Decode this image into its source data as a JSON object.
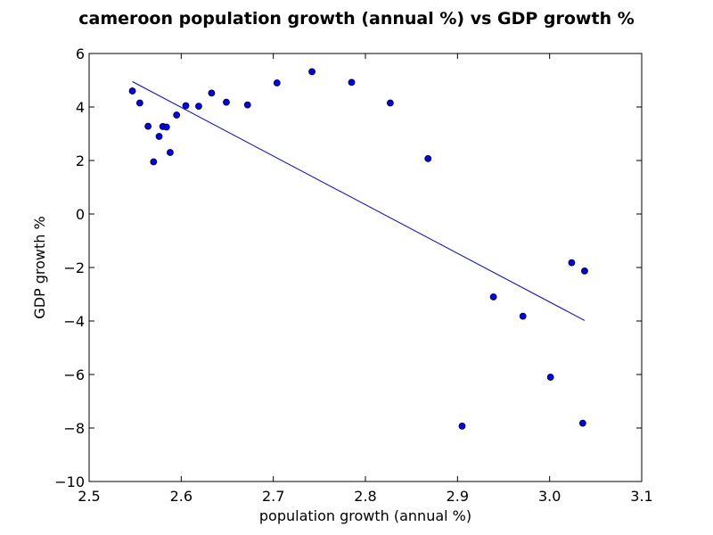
{
  "chart_data": {
    "type": "scatter",
    "title": "cameroon population growth (annual %) vs GDP growth %",
    "xlabel": "population growth (annual %)",
    "ylabel": "GDP growth %",
    "xlim": [
      2.5,
      3.1
    ],
    "ylim": [
      -10,
      6
    ],
    "xticks": [
      2.5,
      2.6,
      2.7,
      2.8,
      2.9,
      3.0,
      3.1
    ],
    "xtick_labels": [
      "2.5",
      "2.6",
      "2.7",
      "2.8",
      "2.9",
      "3.0",
      "3.1"
    ],
    "yticks": [
      -10,
      -8,
      -6,
      -4,
      -2,
      0,
      2,
      4,
      6
    ],
    "ytick_labels": [
      "−10",
      "−8",
      "−6",
      "−4",
      "−2",
      "0",
      "2",
      "4",
      "6"
    ],
    "grid": false,
    "points": [
      {
        "x": 2.547,
        "y": 4.6
      },
      {
        "x": 2.555,
        "y": 4.15
      },
      {
        "x": 2.564,
        "y": 3.28
      },
      {
        "x": 2.57,
        "y": 1.95
      },
      {
        "x": 2.576,
        "y": 2.9
      },
      {
        "x": 2.58,
        "y": 3.27
      },
      {
        "x": 2.584,
        "y": 3.25
      },
      {
        "x": 2.588,
        "y": 2.3
      },
      {
        "x": 2.595,
        "y": 3.7
      },
      {
        "x": 2.605,
        "y": 4.05
      },
      {
        "x": 2.619,
        "y": 4.03
      },
      {
        "x": 2.633,
        "y": 4.52
      },
      {
        "x": 2.649,
        "y": 4.18
      },
      {
        "x": 2.672,
        "y": 4.08
      },
      {
        "x": 2.704,
        "y": 4.9
      },
      {
        "x": 2.742,
        "y": 5.32
      },
      {
        "x": 2.785,
        "y": 4.92
      },
      {
        "x": 2.827,
        "y": 4.15
      },
      {
        "x": 2.868,
        "y": 2.07
      },
      {
        "x": 2.905,
        "y": -7.93
      },
      {
        "x": 2.939,
        "y": -3.1
      },
      {
        "x": 2.971,
        "y": -3.82
      },
      {
        "x": 3.001,
        "y": -6.1
      },
      {
        "x": 3.024,
        "y": -1.82
      },
      {
        "x": 3.036,
        "y": -7.82
      },
      {
        "x": 3.038,
        "y": -2.13
      }
    ],
    "trendline": {
      "x": [
        2.547,
        3.038
      ],
      "y": [
        4.95,
        -3.98
      ]
    },
    "colors": {
      "marker_fill": "#0000ff",
      "marker_edge": "#000000",
      "line": "#0000ff",
      "axes": "#000000"
    }
  }
}
